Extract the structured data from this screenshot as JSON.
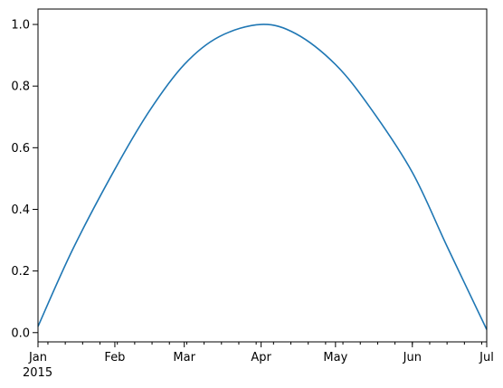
{
  "chart_data": {
    "type": "line",
    "title": "",
    "xlabel": "",
    "ylabel": "",
    "x_range": [
      "2015-01-01",
      "2015-07-01"
    ],
    "xlim": [
      "2015-01-01",
      "2015-07-01"
    ],
    "ylim": [
      -0.03,
      1.05
    ],
    "grid": false,
    "colors": {
      "line": "#1f77b4",
      "axes": "#000000",
      "background": "#ffffff"
    },
    "x_ticks": [
      {
        "date": "2015-01-01",
        "label": "Jan",
        "sublabel": "2015"
      },
      {
        "date": "2015-02-01",
        "label": "Feb"
      },
      {
        "date": "2015-03-01",
        "label": "Mar"
      },
      {
        "date": "2015-04-01",
        "label": "Apr"
      },
      {
        "date": "2015-05-01",
        "label": "May"
      },
      {
        "date": "2015-06-01",
        "label": "Jun"
      },
      {
        "date": "2015-07-01",
        "label": "Jul"
      }
    ],
    "y_ticks": [
      {
        "value": 0.0,
        "label": "0.0"
      },
      {
        "value": 0.2,
        "label": "0.2"
      },
      {
        "value": 0.4,
        "label": "0.4"
      },
      {
        "value": 0.6,
        "label": "0.6"
      },
      {
        "value": 0.8,
        "label": "0.8"
      },
      {
        "value": 1.0,
        "label": "1.0"
      }
    ],
    "series": [
      {
        "x": [
          "2015-01-01",
          "2015-01-15",
          "2015-02-01",
          "2015-02-15",
          "2015-03-01",
          "2015-03-15",
          "2015-04-01",
          "2015-04-15",
          "2015-05-01",
          "2015-05-15",
          "2015-06-01",
          "2015-06-15",
          "2015-07-01"
        ],
        "y": [
          0.02,
          0.27,
          0.53,
          0.72,
          0.87,
          0.96,
          1.0,
          0.97,
          0.87,
          0.73,
          0.52,
          0.28,
          0.01
        ]
      }
    ]
  }
}
